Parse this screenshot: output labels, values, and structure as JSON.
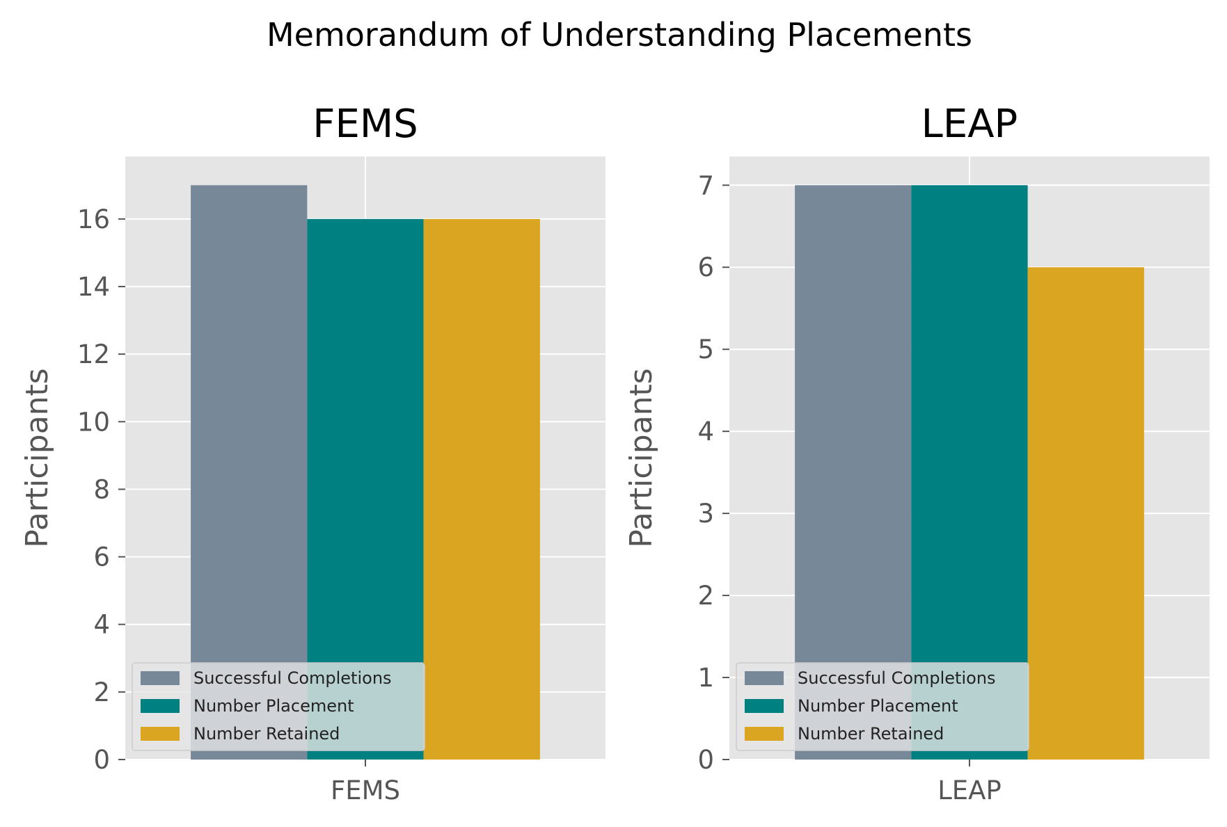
{
  "suptitle": "Memorandum of Understanding Placements",
  "colors": {
    "background": "#ffffff",
    "axes_bg": "#e5e5e5",
    "grid": "#ffffff",
    "tick_text": "#555555"
  },
  "chart_data": [
    {
      "type": "bar",
      "title": "FEMS",
      "categories": [
        "FEMS"
      ],
      "xlabel": "",
      "ylabel": "Participants",
      "ylim": [
        0,
        17.85
      ],
      "yticks": [
        0,
        2,
        4,
        6,
        8,
        10,
        12,
        14,
        16
      ],
      "grid": true,
      "legend_position": "lower left",
      "series": [
        {
          "name": "Successful Completions",
          "values": [
            17
          ],
          "color": "#778899"
        },
        {
          "name": "Number Placement",
          "values": [
            16
          ],
          "color": "#008080"
        },
        {
          "name": "Number Retained",
          "values": [
            16
          ],
          "color": "#daa520"
        }
      ]
    },
    {
      "type": "bar",
      "title": "LEAP",
      "categories": [
        "LEAP"
      ],
      "xlabel": "",
      "ylabel": "Participants",
      "ylim": [
        0,
        7.35
      ],
      "yticks": [
        0,
        1,
        2,
        3,
        4,
        5,
        6,
        7
      ],
      "grid": true,
      "legend_position": "lower left",
      "series": [
        {
          "name": "Successful Completions",
          "values": [
            7
          ],
          "color": "#778899"
        },
        {
          "name": "Number Placement",
          "values": [
            7
          ],
          "color": "#008080"
        },
        {
          "name": "Number Retained",
          "values": [
            6
          ],
          "color": "#daa520"
        }
      ]
    }
  ]
}
